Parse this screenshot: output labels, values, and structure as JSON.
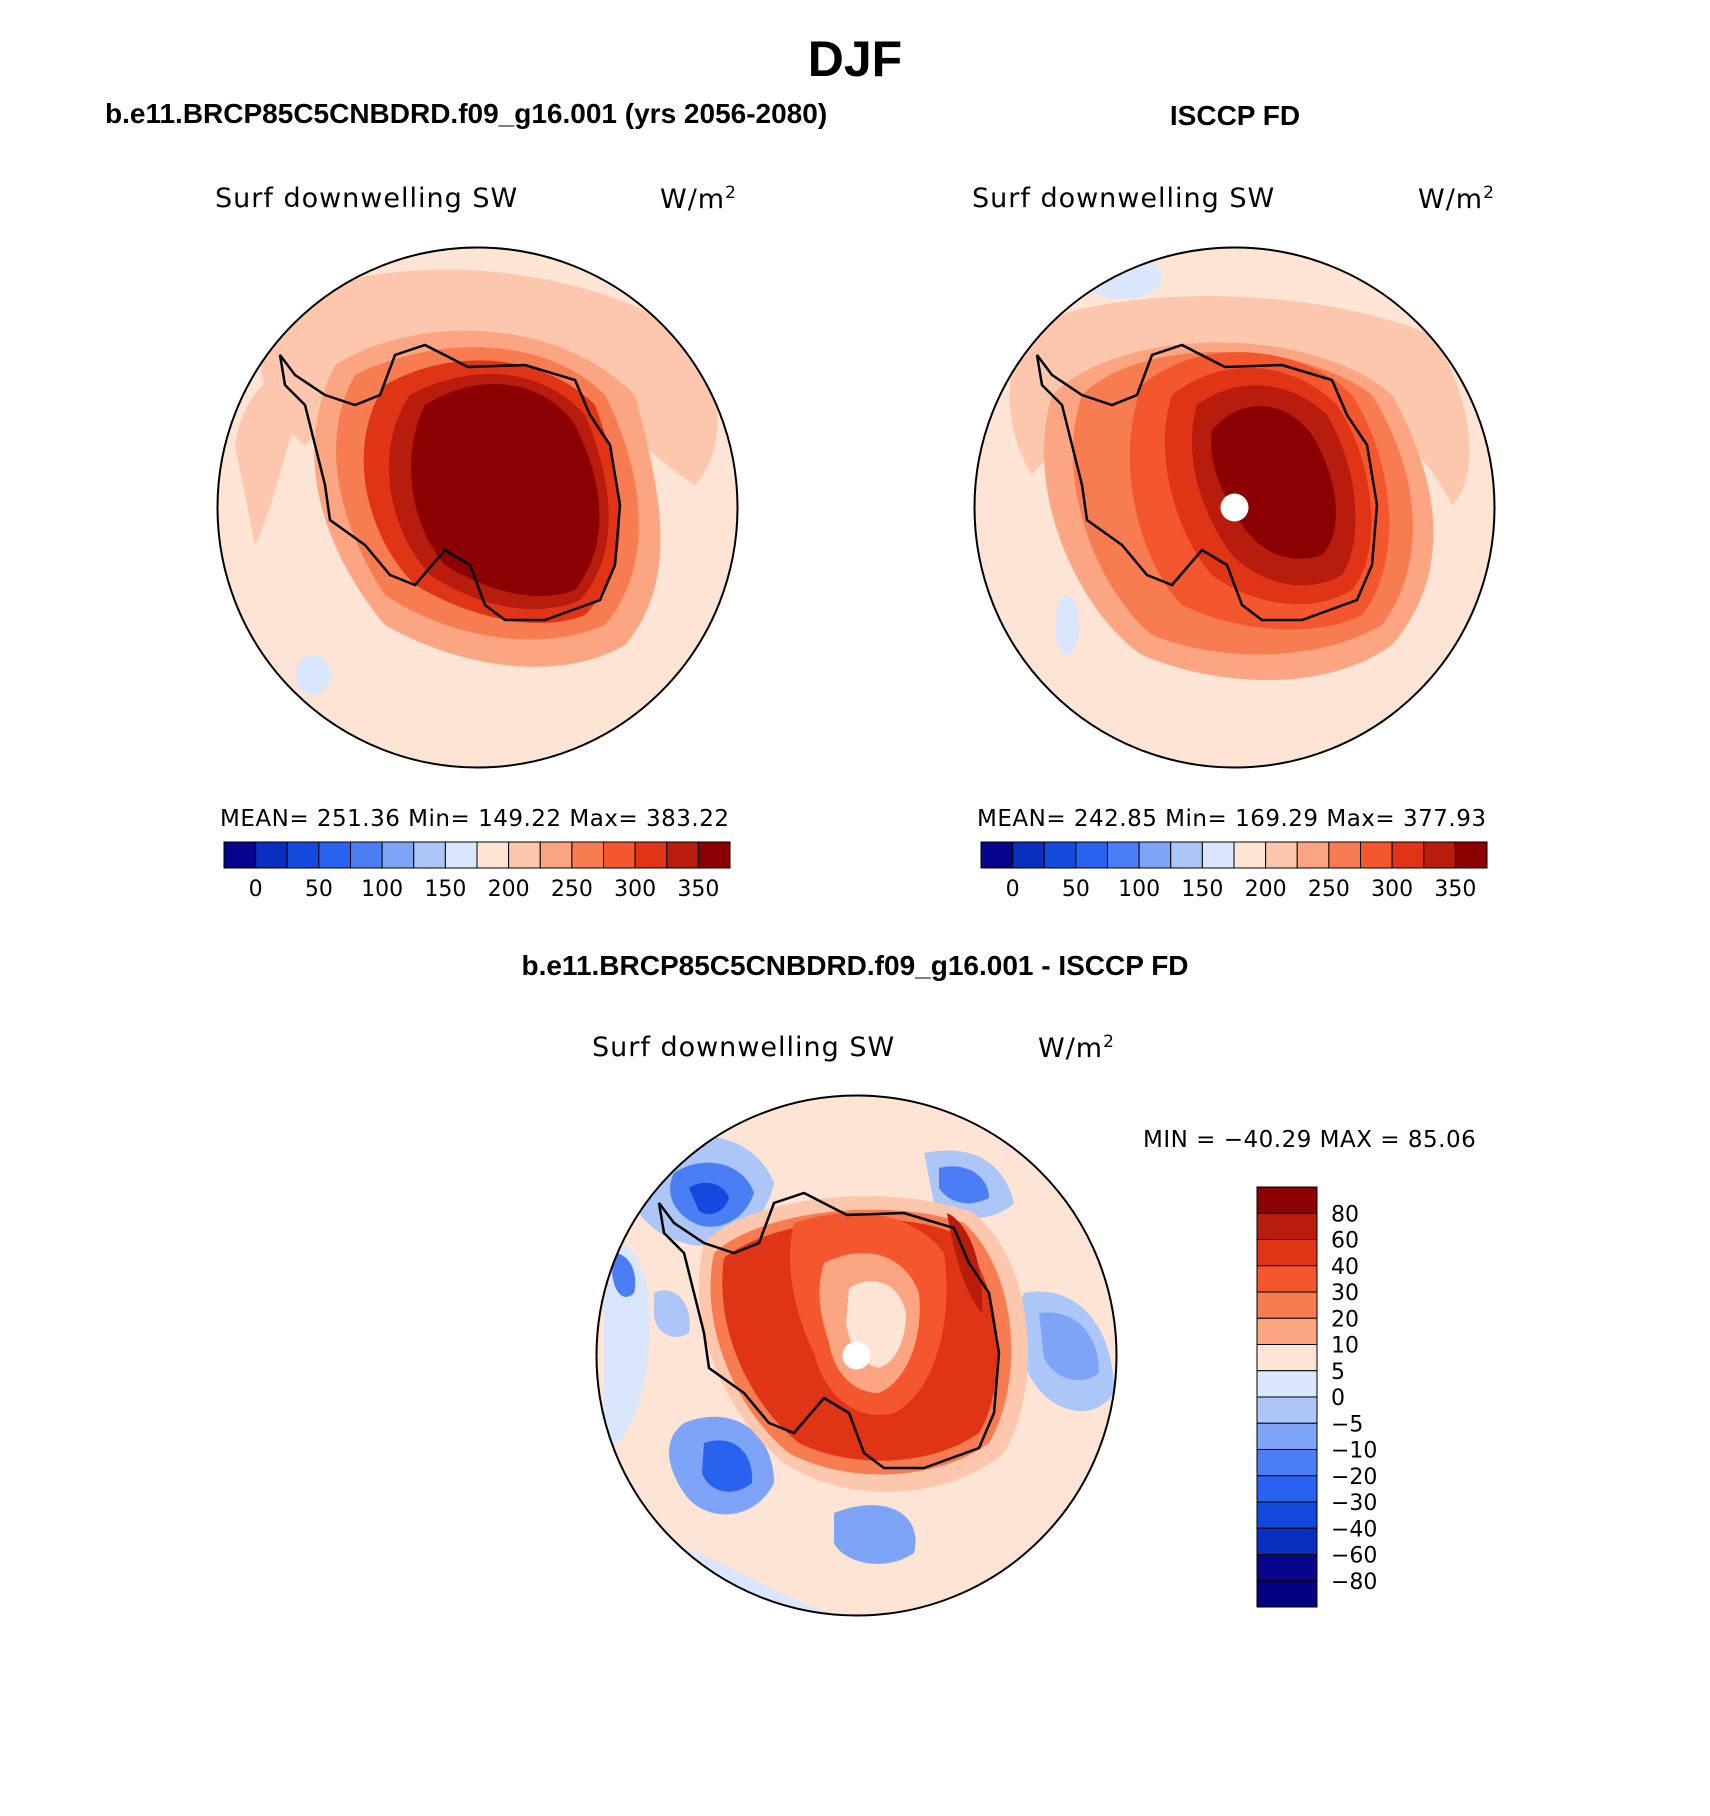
{
  "figure": {
    "season": "DJF",
    "left_title": "b.e11.BRCP85C5CNBDRD.f09_g16.001 (yrs 2056-2080)",
    "right_title": "ISCCP FD",
    "diff_title": "b.e11.BRCP85C5CNBDRD.f09_g16.001 - ISCCP FD"
  },
  "panels": {
    "model": {
      "variable": "Surf downwelling SW",
      "units": "W/m",
      "units_sup": "2",
      "stats": "MEAN= 251.36   Min= 149.22   Max= 383.22",
      "has_pole_hole": false
    },
    "obs": {
      "variable": "Surf downwelling SW",
      "units": "W/m",
      "units_sup": "2",
      "stats": "MEAN= 242.85   Min= 169.29   Max= 377.93",
      "has_pole_hole": true
    },
    "diff": {
      "variable": "Surf downwelling SW",
      "units": "W/m",
      "units_sup": "2",
      "stats": "MIN = −40.29  MAX =   85.06",
      "has_pole_hole": true
    }
  },
  "colorbar_abs": {
    "colors": [
      "#08048c",
      "#0a2ec0",
      "#1449de",
      "#2a62f0",
      "#4b7df5",
      "#7ea4f7",
      "#adc6f8",
      "#d9e6fb",
      "#fde4d4",
      "#fcc7ad",
      "#fba582",
      "#f87c52",
      "#f4562d",
      "#e03417",
      "#b81c0c",
      "#8b0000"
    ],
    "ticks": [
      "0",
      "50",
      "100",
      "150",
      "200",
      "250",
      "300",
      "350"
    ]
  },
  "colorbar_diff": {
    "colors": [
      "#8b0000",
      "#b81c0c",
      "#e03417",
      "#f4562d",
      "#f87c52",
      "#fba582",
      "#fde4d4",
      "#d9e6fb",
      "#adc6f8",
      "#7ea4f7",
      "#4b7df5",
      "#2a62f0",
      "#1449de",
      "#0a2ec0",
      "#08048c",
      "#030080"
    ],
    "labels": [
      "80",
      "60",
      "40",
      "30",
      "20",
      "10",
      "5",
      "0",
      "−5",
      "−10",
      "−20",
      "−30",
      "−40",
      "−60",
      "−80"
    ]
  }
}
